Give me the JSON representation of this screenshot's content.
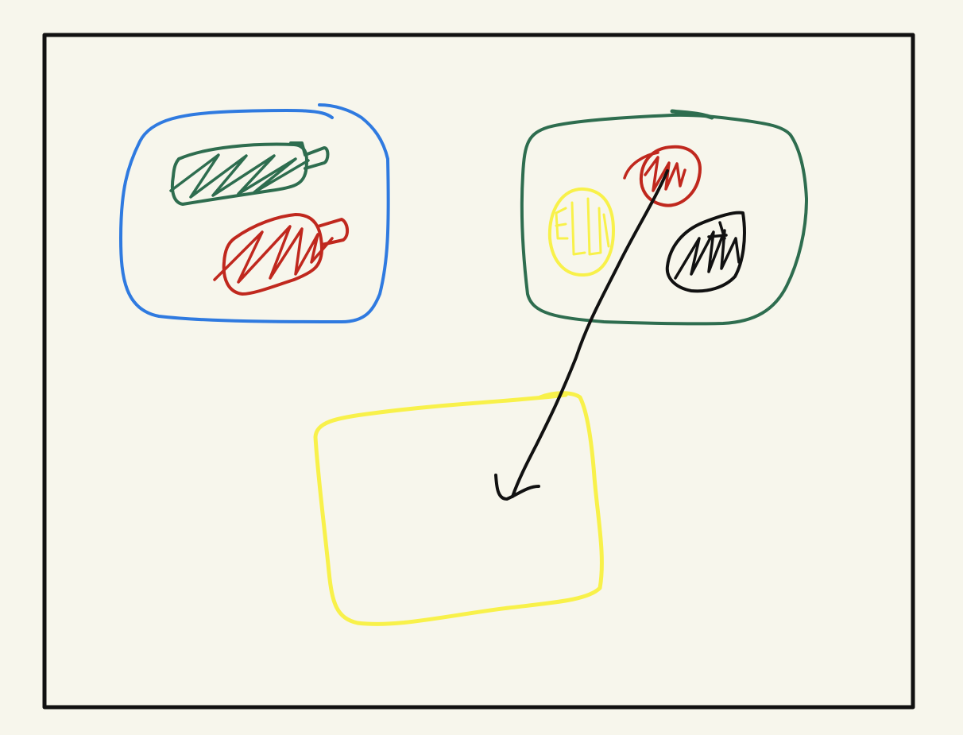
{
  "canvas": {
    "background_color": "#f7f6ec"
  },
  "frame": {
    "color": "#111111"
  },
  "groups": {
    "left_container": {
      "color": "#2f7ae0",
      "items": [
        {
          "kind": "bottle-sketch",
          "color": "#2e6d4f"
        },
        {
          "kind": "bottle-sketch",
          "color": "#c0281e"
        }
      ]
    },
    "right_container": {
      "color": "#2e6d4f",
      "items": [
        {
          "kind": "ball-sketch",
          "color": "#f8f14a"
        },
        {
          "kind": "ball-sketch",
          "color": "#c0281e"
        },
        {
          "kind": "ball-sketch",
          "color": "#111111"
        }
      ]
    },
    "target_container": {
      "color": "#f8f14a"
    }
  },
  "connector": {
    "kind": "arrow",
    "from": "red-ball",
    "to": "target_container",
    "color": "#111111"
  }
}
